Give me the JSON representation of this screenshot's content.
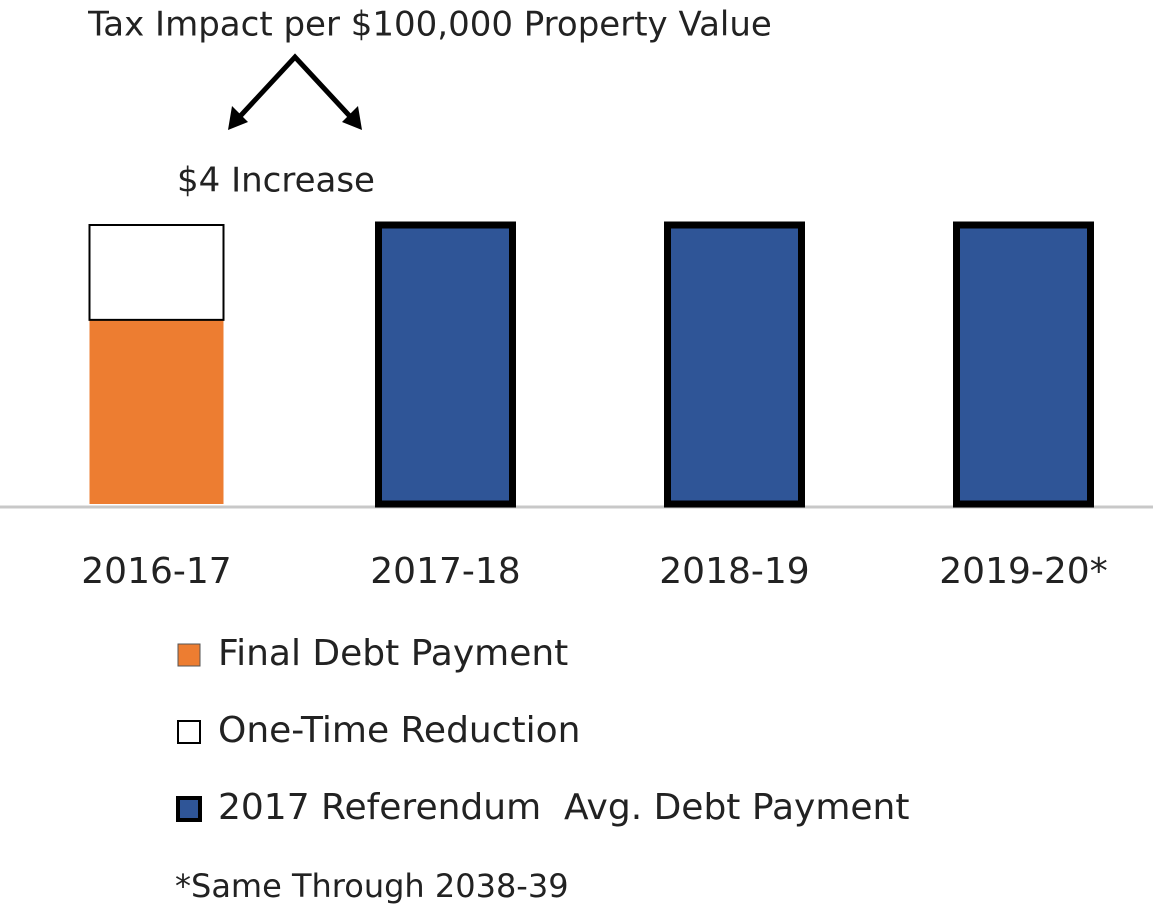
{
  "chart_data": {
    "type": "stacked_bar",
    "title": "Tax Impact per $100,000 Property Value",
    "annotation": "$4 Increase",
    "footnote": "*Same Through 2038-39",
    "categories": [
      "2016-17",
      "2017-18",
      "2018-19",
      "2019-20*"
    ],
    "series": [
      {
        "name": "Final Debt Payment",
        "color": "#ed7d31",
        "values": [
          66,
          null,
          null,
          null
        ]
      },
      {
        "name": "One-Time Reduction",
        "color": "#ffffff",
        "values": [
          34,
          null,
          null,
          null
        ]
      },
      {
        "name": "2017 Referendum  Avg. Debt Payment",
        "color": "#2f5597",
        "values": [
          null,
          100,
          100,
          100
        ]
      }
    ],
    "ylim": [
      0,
      100
    ]
  }
}
